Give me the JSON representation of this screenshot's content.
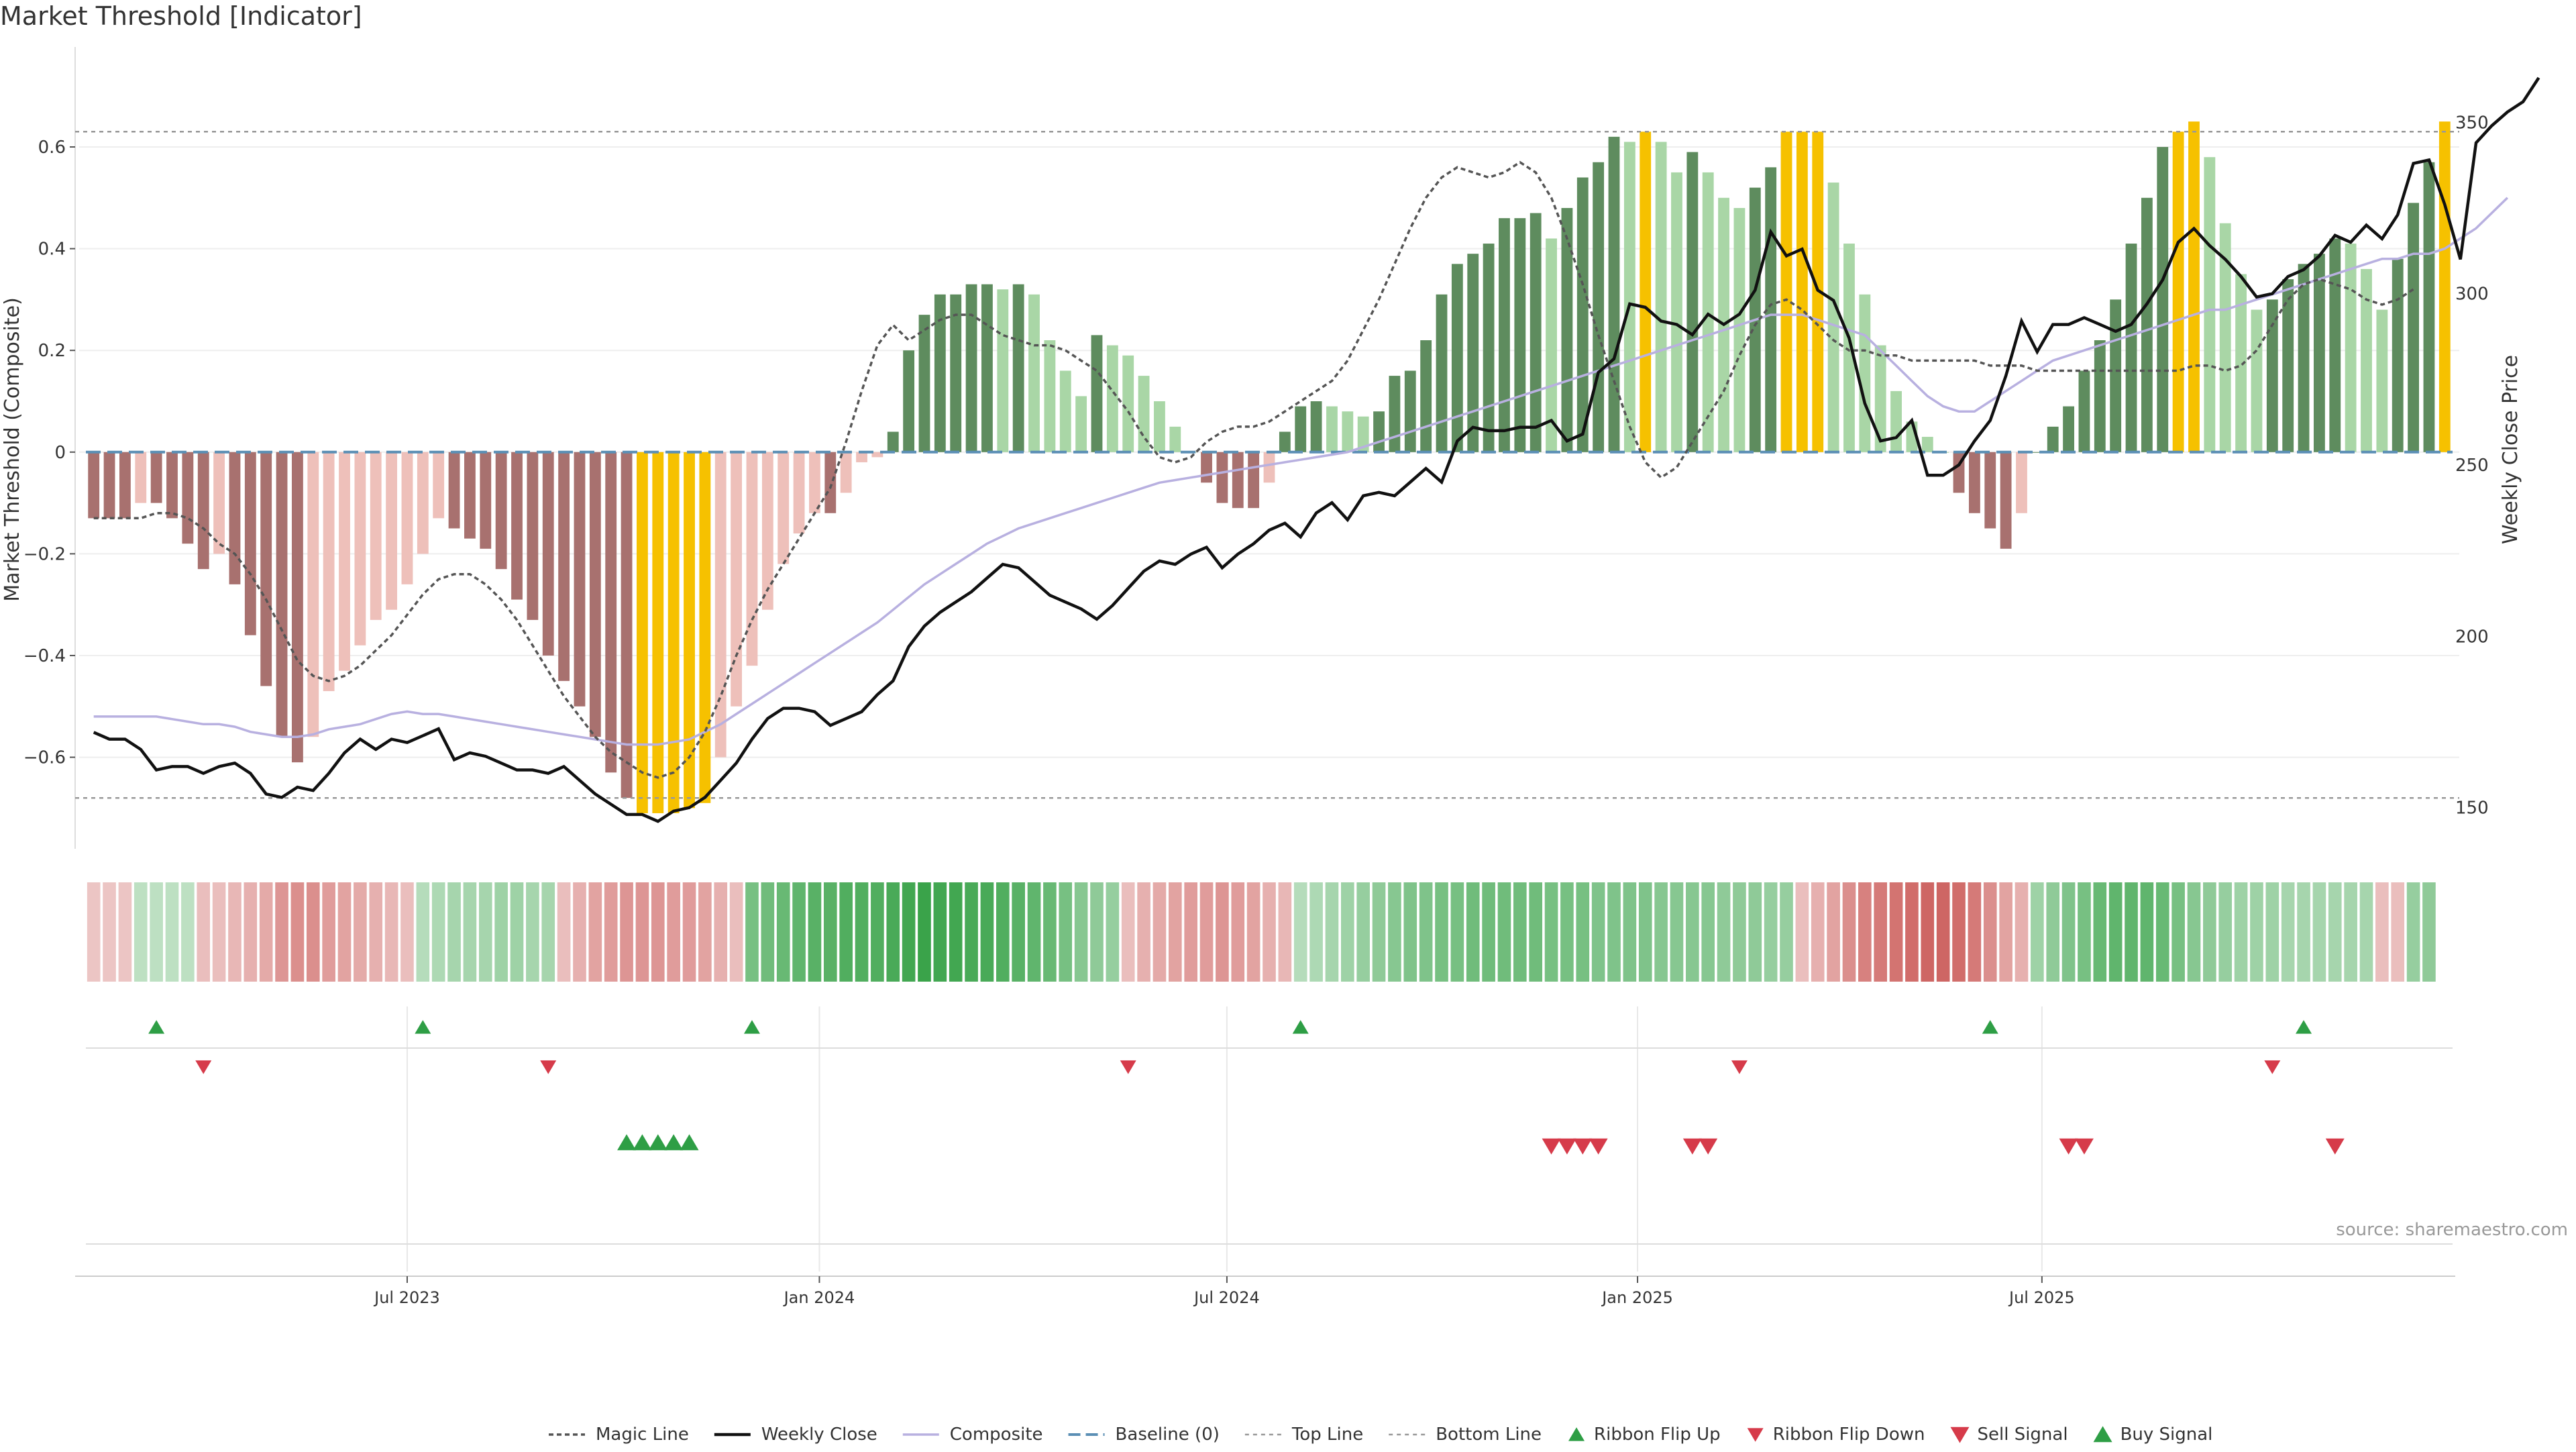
{
  "title": "Market Threshold [Indicator]",
  "source": "source: sharemaestro.com",
  "colors": {
    "strong_up": "#5e8c5e",
    "weak_up": "#a9d6a6",
    "strong_down": "#a8716f",
    "weak_down": "#eec0ba",
    "extreme": "#f6c100",
    "ribbon_up": "#3aa34a",
    "ribbon_down": "#c8524f",
    "weekly_close": "#111111",
    "composite": "#b8b0e0",
    "magic_line": "#555555",
    "baseline": "#5b8fb5",
    "threshold_line": "#999999",
    "buy_signal": "#2e9e45",
    "sell_signal": "#d63b4a"
  },
  "chart_data": {
    "type": "bar",
    "title": "Market Threshold [Indicator]",
    "ylabel": "Market Threshold (Composite)",
    "y2label": "Weekly Close Price",
    "ylim": [
      -0.78,
      0.79
    ],
    "y2lim": [
      138,
      371
    ],
    "yticks": [
      {
        "v": 0.6,
        "label": "0.6"
      },
      {
        "v": 0.4,
        "label": "0.4"
      },
      {
        "v": 0.2,
        "label": "0.2"
      },
      {
        "v": 0,
        "label": "0"
      },
      {
        "v": -0.2,
        "label": "−0.2"
      },
      {
        "v": -0.4,
        "label": "−0.4"
      },
      {
        "v": -0.6,
        "label": "−0.6"
      }
    ],
    "y2ticks": [
      {
        "v": 350,
        "label": "350"
      },
      {
        "v": 300,
        "label": "300"
      },
      {
        "v": 250,
        "label": "250"
      },
      {
        "v": 200,
        "label": "200"
      },
      {
        "v": 150,
        "label": "150"
      }
    ],
    "xticks": [
      {
        "week": 20.5,
        "label": "Jul 2023"
      },
      {
        "week": 46.8,
        "label": "Jan 2024"
      },
      {
        "week": 72.8,
        "label": "Jul 2024"
      },
      {
        "week": 99,
        "label": "Jan 2025"
      },
      {
        "week": 124.8,
        "label": "Jul 2025"
      }
    ],
    "threshold_top": 0.63,
    "threshold_bottom": -0.68,
    "composite_bars": [
      -0.13,
      -0.13,
      -0.13,
      -0.1,
      -0.1,
      -0.13,
      -0.18,
      -0.23,
      -0.2,
      -0.26,
      -0.36,
      -0.46,
      -0.56,
      -0.61,
      -0.56,
      -0.47,
      -0.43,
      -0.38,
      -0.33,
      -0.31,
      -0.26,
      -0.2,
      -0.13,
      -0.15,
      -0.17,
      -0.19,
      -0.23,
      -0.29,
      -0.33,
      -0.4,
      -0.45,
      -0.5,
      -0.56,
      -0.63,
      -0.68,
      -0.71,
      -0.71,
      -0.71,
      -0.7,
      -0.69,
      -0.6,
      -0.5,
      -0.42,
      -0.31,
      -0.22,
      -0.16,
      -0.12,
      -0.12,
      -0.08,
      -0.02,
      -0.01,
      0.04,
      0.2,
      0.27,
      0.31,
      0.31,
      0.33,
      0.33,
      0.32,
      0.33,
      0.31,
      0.22,
      0.16,
      0.11,
      0.23,
      0.21,
      0.19,
      0.15,
      0.1,
      0.05,
      0.0,
      -0.06,
      -0.1,
      -0.11,
      -0.11,
      -0.06,
      0.04,
      0.09,
      0.1,
      0.09,
      0.08,
      0.07,
      0.08,
      0.15,
      0.16,
      0.22,
      0.31,
      0.37,
      0.39,
      0.41,
      0.46,
      0.46,
      0.47,
      0.42,
      0.48,
      0.54,
      0.57,
      0.62,
      0.61,
      0.63,
      0.61,
      0.55,
      0.59,
      0.55,
      0.5,
      0.48,
      0.52,
      0.56,
      0.63,
      0.63,
      0.63,
      0.53,
      0.41,
      0.31,
      0.21,
      0.12,
      0.06,
      0.03,
      0.0,
      -0.08,
      -0.12,
      -0.15,
      -0.19,
      -0.12,
      0.0,
      0.05,
      0.09,
      0.16,
      0.22,
      0.3,
      0.41,
      0.5,
      0.6,
      0.63,
      0.65,
      0.58,
      0.45,
      0.35,
      0.28,
      0.3,
      0.34,
      0.37,
      0.39,
      0.42,
      0.41,
      0.36,
      0.28,
      0.38,
      0.49,
      0.57,
      0.65
    ],
    "magic_line": [
      -0.13,
      -0.13,
      -0.13,
      -0.13,
      -0.12,
      -0.12,
      -0.13,
      -0.15,
      -0.18,
      -0.2,
      -0.24,
      -0.29,
      -0.35,
      -0.41,
      -0.44,
      -0.45,
      -0.44,
      -0.42,
      -0.39,
      -0.36,
      -0.32,
      -0.28,
      -0.25,
      -0.24,
      -0.24,
      -0.26,
      -0.29,
      -0.33,
      -0.38,
      -0.43,
      -0.48,
      -0.52,
      -0.56,
      -0.59,
      -0.61,
      -0.63,
      -0.64,
      -0.63,
      -0.6,
      -0.55,
      -0.48,
      -0.4,
      -0.33,
      -0.27,
      -0.22,
      -0.17,
      -0.12,
      -0.07,
      0.02,
      0.12,
      0.21,
      0.25,
      0.22,
      0.24,
      0.26,
      0.27,
      0.27,
      0.25,
      0.23,
      0.22,
      0.21,
      0.21,
      0.2,
      0.18,
      0.16,
      0.12,
      0.08,
      0.03,
      -0.01,
      -0.02,
      -0.01,
      0.02,
      0.04,
      0.05,
      0.05,
      0.06,
      0.08,
      0.1,
      0.12,
      0.14,
      0.18,
      0.24,
      0.3,
      0.37,
      0.44,
      0.5,
      0.54,
      0.56,
      0.55,
      0.54,
      0.55,
      0.57,
      0.55,
      0.5,
      0.42,
      0.33,
      0.23,
      0.14,
      0.05,
      -0.02,
      -0.05,
      -0.03,
      0.02,
      0.07,
      0.12,
      0.19,
      0.25,
      0.29,
      0.3,
      0.28,
      0.25,
      0.22,
      0.2,
      0.2,
      0.19,
      0.19,
      0.18,
      0.18,
      0.18,
      0.18,
      0.18,
      0.17,
      0.17,
      0.17,
      0.16,
      0.16,
      0.16,
      0.16,
      0.16,
      0.16,
      0.16,
      0.16,
      0.16,
      0.16,
      0.17,
      0.17,
      0.16,
      0.17,
      0.2,
      0.25,
      0.3,
      0.33,
      0.34,
      0.33,
      0.32,
      0.3,
      0.29,
      0.3,
      0.32
    ],
    "weekly_close": [
      172,
      170,
      170,
      167,
      161,
      162,
      162,
      160,
      162,
      163,
      160,
      154,
      153,
      156,
      155,
      160,
      166,
      170,
      167,
      170,
      169,
      171,
      173,
      164,
      166,
      165,
      163,
      161,
      161,
      160,
      162,
      158,
      154,
      151,
      148,
      148,
      146,
      149,
      150,
      153,
      158,
      163,
      170,
      176,
      179,
      179,
      178,
      174,
      176,
      178,
      183,
      187,
      197,
      203,
      207,
      210,
      213,
      217,
      221,
      220,
      216,
      212,
      210,
      208,
      205,
      209,
      214,
      219,
      222,
      221,
      224,
      226,
      220,
      224,
      227,
      231,
      233,
      229,
      236,
      239,
      234,
      241,
      242,
      241,
      245,
      249,
      245,
      257,
      261,
      260,
      260,
      261,
      261,
      263,
      257,
      259,
      277,
      281,
      297,
      296,
      292,
      291,
      288,
      294,
      291,
      294,
      301,
      318,
      311,
      313,
      301,
      298,
      287,
      268,
      257,
      258,
      263,
      247,
      247,
      250,
      257,
      263,
      276,
      292,
      283,
      291,
      291,
      293,
      291,
      289,
      291,
      297,
      304,
      315,
      319,
      314,
      310,
      305,
      299,
      300,
      305,
      307,
      311,
      317,
      315,
      320,
      316,
      323,
      338,
      339,
      326,
      310,
      344,
      349,
      353,
      356,
      363
    ],
    "composite_line": [
      -0.52,
      -0.52,
      -0.52,
      -0.52,
      -0.52,
      -0.525,
      -0.53,
      -0.535,
      -0.535,
      -0.54,
      -0.55,
      -0.555,
      -0.56,
      -0.56,
      -0.555,
      -0.545,
      -0.54,
      -0.535,
      -0.525,
      -0.515,
      -0.51,
      -0.515,
      -0.515,
      -0.52,
      -0.525,
      -0.53,
      -0.535,
      -0.54,
      -0.545,
      -0.55,
      -0.555,
      -0.56,
      -0.565,
      -0.57,
      -0.575,
      -0.575,
      -0.575,
      -0.57,
      -0.565,
      -0.55,
      -0.535,
      -0.515,
      -0.495,
      -0.475,
      -0.455,
      -0.435,
      -0.415,
      -0.395,
      -0.375,
      -0.355,
      -0.335,
      -0.31,
      -0.285,
      -0.26,
      -0.24,
      -0.22,
      -0.2,
      -0.18,
      -0.165,
      -0.15,
      -0.14,
      -0.13,
      -0.12,
      -0.11,
      -0.1,
      -0.09,
      -0.08,
      -0.07,
      -0.06,
      -0.055,
      -0.05,
      -0.045,
      -0.04,
      -0.035,
      -0.03,
      -0.025,
      -0.02,
      -0.015,
      -0.01,
      -0.005,
      0.0,
      0.01,
      0.02,
      0.03,
      0.04,
      0.05,
      0.06,
      0.07,
      0.08,
      0.09,
      0.1,
      0.11,
      0.12,
      0.13,
      0.14,
      0.15,
      0.16,
      0.17,
      0.18,
      0.19,
      0.2,
      0.21,
      0.22,
      0.23,
      0.24,
      0.25,
      0.26,
      0.27,
      0.27,
      0.27,
      0.26,
      0.25,
      0.24,
      0.23,
      0.2,
      0.17,
      0.14,
      0.11,
      0.09,
      0.08,
      0.08,
      0.1,
      0.12,
      0.14,
      0.16,
      0.18,
      0.19,
      0.2,
      0.21,
      0.22,
      0.23,
      0.24,
      0.25,
      0.26,
      0.27,
      0.28,
      0.28,
      0.29,
      0.3,
      0.31,
      0.32,
      0.33,
      0.34,
      0.35,
      0.36,
      0.37,
      0.38,
      0.38,
      0.39,
      0.39,
      0.4,
      0.42,
      0.44,
      0.47,
      0.5
    ],
    "ribbon": [
      -0.15,
      -0.15,
      -0.15,
      0.15,
      0.15,
      0.15,
      0.15,
      -0.2,
      -0.2,
      -0.25,
      -0.3,
      -0.35,
      -0.5,
      -0.55,
      -0.55,
      -0.45,
      -0.4,
      -0.35,
      -0.3,
      -0.25,
      -0.2,
      0.2,
      0.25,
      0.3,
      0.3,
      0.3,
      0.35,
      0.35,
      0.3,
      0.3,
      -0.2,
      -0.3,
      -0.4,
      -0.45,
      -0.5,
      -0.5,
      -0.5,
      -0.45,
      -0.45,
      -0.4,
      -0.3,
      -0.2,
      0.6,
      0.65,
      0.7,
      0.75,
      0.8,
      0.8,
      0.85,
      0.85,
      0.85,
      0.9,
      0.95,
      1.0,
      0.95,
      0.95,
      0.9,
      0.9,
      0.85,
      0.8,
      0.75,
      0.7,
      0.6,
      0.5,
      0.45,
      0.4,
      -0.2,
      -0.3,
      -0.35,
      -0.4,
      -0.45,
      -0.45,
      -0.5,
      -0.45,
      -0.4,
      -0.3,
      -0.25,
      0.2,
      0.25,
      0.3,
      0.35,
      0.4,
      0.45,
      0.5,
      0.55,
      0.55,
      0.6,
      0.6,
      0.65,
      0.65,
      0.65,
      0.65,
      0.65,
      0.6,
      0.6,
      0.6,
      0.55,
      0.55,
      0.55,
      0.55,
      0.5,
      0.5,
      0.5,
      0.5,
      0.45,
      0.45,
      0.45,
      0.4,
      0.4,
      -0.2,
      -0.3,
      -0.4,
      -0.55,
      -0.65,
      -0.7,
      -0.75,
      -0.8,
      -0.85,
      -0.85,
      -0.8,
      -0.7,
      -0.55,
      -0.4,
      -0.3,
      0.35,
      0.45,
      0.55,
      0.6,
      0.7,
      0.75,
      0.75,
      0.75,
      0.7,
      0.6,
      0.5,
      0.45,
      0.4,
      0.35,
      0.35,
      0.35,
      0.3,
      0.3,
      0.3,
      0.3,
      0.3,
      0.3,
      -0.2,
      -0.2,
      0.4,
      0.45
    ],
    "ribbon_flip_up_weeks": [
      4,
      21,
      42,
      77,
      121,
      141
    ],
    "ribbon_flip_down_weeks": [
      7,
      29,
      66,
      105,
      139
    ],
    "buy_signal_weeks": [
      34,
      35,
      36,
      37,
      38
    ],
    "sell_signal_weeks": [
      93,
      94,
      95,
      96,
      102,
      103,
      126,
      127,
      143
    ],
    "legend": [
      {
        "key": "magic",
        "label": "Magic Line"
      },
      {
        "key": "close",
        "label": "Weekly Close"
      },
      {
        "key": "composite",
        "label": "Composite"
      },
      {
        "key": "baseline",
        "label": "Baseline (0)"
      },
      {
        "key": "top",
        "label": "Top Line"
      },
      {
        "key": "bottom",
        "label": "Bottom Line"
      },
      {
        "key": "flip_up",
        "label": "Ribbon Flip Up"
      },
      {
        "key": "flip_down",
        "label": "Ribbon Flip Down"
      },
      {
        "key": "sell",
        "label": "Sell Signal"
      },
      {
        "key": "buy",
        "label": "Buy Signal"
      }
    ]
  }
}
